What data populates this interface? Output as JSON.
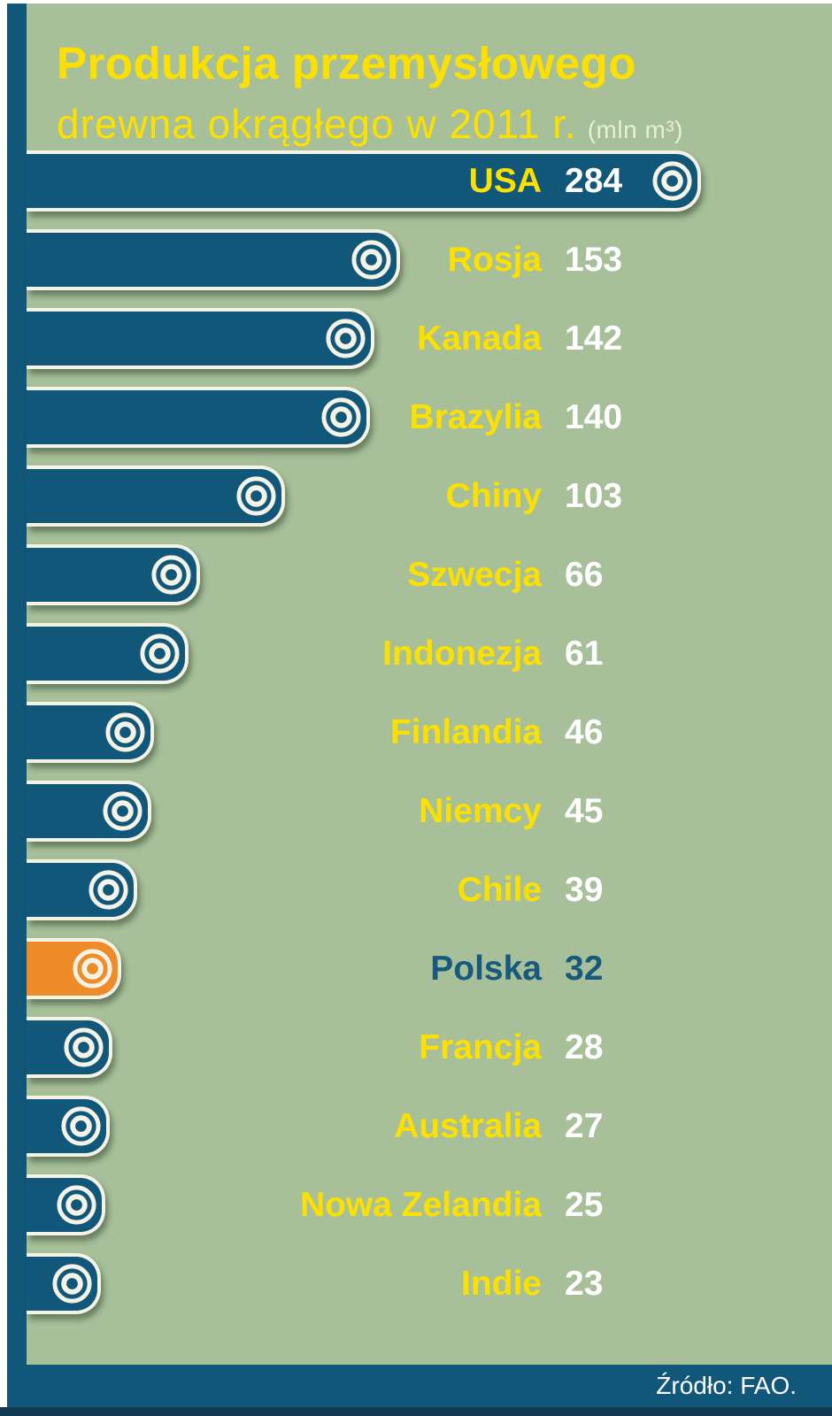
{
  "header": {
    "title_line1": "Produkcja przemysłowego",
    "title_line2": "drewna okrągłego w 2011 r.",
    "unit": "(mln m³)"
  },
  "footer": {
    "source": "Źródło: FAO."
  },
  "colors": {
    "background": "#a8c09a",
    "bar": "#11577a",
    "highlight_bar": "#ef8c2a",
    "label_yellow": "#fbe000",
    "value_white": "#ffffff",
    "highlight_text": "#175a7d",
    "ring_cream": "#f5f2e6",
    "pale_unit": "#e7eed9"
  },
  "chart_data": {
    "type": "bar",
    "orientation": "horizontal",
    "title": "Produkcja przemysłowego drewna okrągłego w 2011 r.",
    "unit": "mln m³",
    "categories": [
      "USA",
      "Rosja",
      "Kanada",
      "Brazylia",
      "Chiny",
      "Szwecja",
      "Indonezja",
      "Finlandia",
      "Niemcy",
      "Chile",
      "Polska",
      "Francja",
      "Australia",
      "Nowa Zelandia",
      "Indie"
    ],
    "values": [
      284,
      153,
      142,
      140,
      103,
      66,
      61,
      46,
      45,
      39,
      32,
      28,
      27,
      25,
      23
    ],
    "highlight_category": "Polska",
    "xlim": [
      0,
      300
    ],
    "grid": false,
    "legend": false,
    "source": "Źródło: FAO."
  }
}
